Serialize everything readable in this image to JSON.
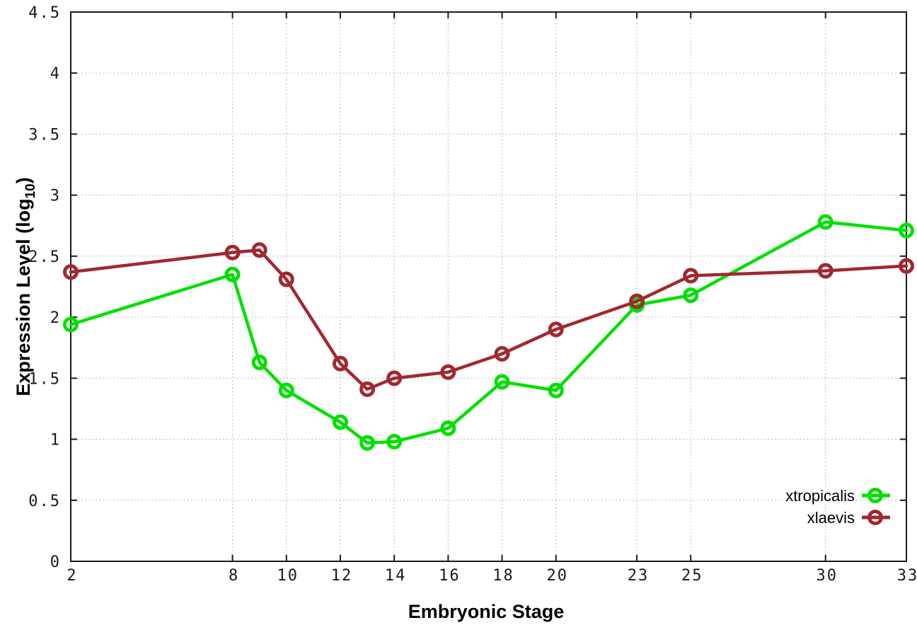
{
  "figure": {
    "background": "#ffffff",
    "border_color": "#1a1a1a",
    "grid_color": "#bdbdbd",
    "tick_label_color": "#1a1a1a"
  },
  "chart_data": {
    "type": "line",
    "title": "",
    "xlabel": "Embryonic Stage",
    "ylabel": "Expression Level (log10)",
    "ylabel_parts": {
      "prefix": "Expression Level (log",
      "subscript": "10",
      "suffix": ")"
    },
    "xlim": [
      2,
      33
    ],
    "ylim": [
      0,
      4.5
    ],
    "x_ticks": [
      2,
      8,
      10,
      12,
      14,
      16,
      18,
      20,
      23,
      25,
      30,
      33
    ],
    "y_ticks": [
      0,
      0.5,
      1,
      1.5,
      2,
      2.5,
      3,
      3.5,
      4,
      4.5
    ],
    "grid": true,
    "legend_position": "bottom-right",
    "x": [
      2,
      8,
      9,
      10,
      12,
      13,
      14,
      16,
      18,
      20,
      23,
      25,
      30,
      33
    ],
    "series": [
      {
        "name": "xtropicalis",
        "color": "#00e000",
        "marker": "open-circle",
        "values": [
          1.94,
          2.35,
          1.63,
          1.4,
          1.14,
          0.97,
          0.98,
          1.09,
          1.47,
          1.4,
          2.1,
          2.18,
          2.78,
          2.71
        ]
      },
      {
        "name": "xlaevis",
        "color": "#a12830",
        "marker": "open-circle",
        "values": [
          2.37,
          2.53,
          2.55,
          2.31,
          1.62,
          1.41,
          1.5,
          1.55,
          1.7,
          1.9,
          2.13,
          2.34,
          2.38,
          2.42
        ]
      }
    ]
  }
}
